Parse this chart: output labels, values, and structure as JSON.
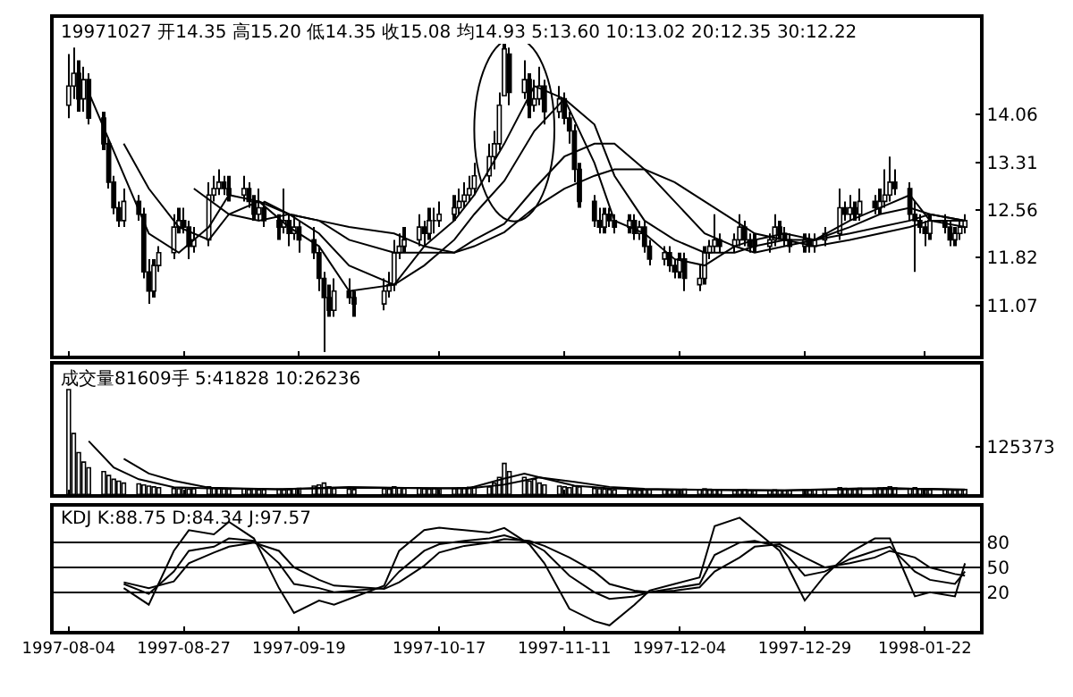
{
  "chart_data": [
    {
      "type": "candlestick",
      "title": "19971027 开14.35 高15.20 低14.35 收15.08 均14.93 5:13.60 10:13.02 20:12.35 30:12.22",
      "color": "#000000",
      "x": [
        "1997-08-04",
        "1997-08-05",
        "1997-08-06",
        "1997-08-07",
        "1997-08-08",
        "1997-08-11",
        "1997-08-12",
        "1997-08-13",
        "1997-08-14",
        "1997-08-15",
        "1997-08-18",
        "1997-08-19",
        "1997-08-20",
        "1997-08-21",
        "1997-08-22",
        "1997-08-25",
        "1997-08-26",
        "1997-08-27",
        "1997-08-28",
        "1997-08-29",
        "1997-09-01",
        "1997-09-02",
        "1997-09-03",
        "1997-09-04",
        "1997-09-05",
        "1997-09-08",
        "1997-09-09",
        "1997-09-10",
        "1997-09-11",
        "1997-09-12",
        "1997-09-15",
        "1997-09-16",
        "1997-09-17",
        "1997-09-18",
        "1997-09-19",
        "1997-09-22",
        "1997-09-23",
        "1997-09-24",
        "1997-09-25",
        "1997-09-26",
        "1997-09-29",
        "1997-09-30",
        "1997-10-06",
        "1997-10-07",
        "1997-10-08",
        "1997-10-09",
        "1997-10-10",
        "1997-10-13",
        "1997-10-14",
        "1997-10-15",
        "1997-10-16",
        "1997-10-17",
        "1997-10-20",
        "1997-10-21",
        "1997-10-22",
        "1997-10-23",
        "1997-10-24",
        "1997-10-27",
        "1997-10-28",
        "1997-10-29",
        "1997-10-30",
        "1997-10-31",
        "1997-11-03",
        "1997-11-04",
        "1997-11-05",
        "1997-11-06",
        "1997-11-07",
        "1997-11-10",
        "1997-11-11",
        "1997-11-12",
        "1997-11-13",
        "1997-11-14",
        "1997-11-17",
        "1997-11-18",
        "1997-11-19",
        "1997-11-20",
        "1997-11-21",
        "1997-11-24",
        "1997-11-25",
        "1997-11-26",
        "1997-11-27",
        "1997-11-28",
        "1997-12-01",
        "1997-12-02",
        "1997-12-03",
        "1997-12-04",
        "1997-12-05",
        "1997-12-08",
        "1997-12-09",
        "1997-12-10",
        "1997-12-11",
        "1997-12-12",
        "1997-12-15",
        "1997-12-16",
        "1997-12-17",
        "1997-12-18",
        "1997-12-19",
        "1997-12-22",
        "1997-12-23",
        "1997-12-24",
        "1997-12-25",
        "1997-12-26",
        "1997-12-29",
        "1997-12-30",
        "1997-12-31",
        "1998-01-02",
        "1998-01-05",
        "1998-01-06",
        "1998-01-07",
        "1998-01-08",
        "1998-01-09",
        "1998-01-12",
        "1998-01-13",
        "1998-01-14",
        "1998-01-15",
        "1998-01-16",
        "1998-01-19",
        "1998-01-20",
        "1998-01-21",
        "1998-01-22",
        "1998-01-23",
        "1998-01-26",
        "1998-01-27",
        "1998-01-28",
        "1998-01-29",
        "1998-01-30"
      ],
      "ohlc": [
        [
          14.2,
          15.0,
          14.0,
          14.5
        ],
        [
          14.5,
          15.1,
          14.3,
          14.7
        ],
        [
          14.7,
          14.9,
          14.1,
          14.3
        ],
        [
          14.3,
          14.8,
          14.1,
          14.6
        ],
        [
          14.6,
          14.7,
          13.9,
          14.0
        ],
        [
          14.0,
          14.1,
          13.5,
          13.6
        ],
        [
          13.6,
          13.7,
          12.9,
          13.0
        ],
        [
          13.0,
          13.1,
          12.5,
          12.6
        ],
        [
          12.6,
          12.7,
          12.3,
          12.4
        ],
        [
          12.4,
          12.9,
          12.3,
          12.7
        ],
        [
          12.7,
          12.8,
          12.4,
          12.5
        ],
        [
          12.5,
          12.6,
          11.5,
          11.6
        ],
        [
          11.6,
          11.8,
          11.1,
          11.3
        ],
        [
          11.3,
          11.8,
          11.2,
          11.7
        ],
        [
          11.7,
          12.0,
          11.6,
          11.9
        ],
        [
          11.9,
          12.5,
          11.8,
          12.3
        ],
        [
          12.3,
          12.6,
          12.2,
          12.4
        ],
        [
          12.4,
          12.6,
          12.2,
          12.3
        ],
        [
          12.3,
          12.4,
          11.8,
          12.0
        ],
        [
          12.0,
          12.3,
          11.9,
          12.1
        ],
        [
          12.1,
          13.0,
          12.0,
          12.8
        ],
        [
          12.8,
          13.1,
          12.7,
          12.9
        ],
        [
          12.9,
          13.2,
          12.8,
          13.0
        ],
        [
          13.0,
          13.1,
          12.8,
          12.9
        ],
        [
          12.9,
          13.1,
          12.7,
          12.8
        ],
        [
          12.8,
          13.1,
          12.7,
          12.9
        ],
        [
          12.9,
          13.0,
          12.6,
          12.7
        ],
        [
          12.7,
          12.8,
          12.4,
          12.5
        ],
        [
          12.5,
          12.9,
          12.4,
          12.6
        ],
        [
          12.6,
          12.7,
          12.3,
          12.4
        ],
        [
          12.4,
          12.5,
          12.1,
          12.3
        ],
        [
          12.3,
          12.9,
          12.2,
          12.4
        ],
        [
          12.4,
          12.5,
          12.0,
          12.2
        ],
        [
          12.2,
          12.5,
          12.1,
          12.3
        ],
        [
          12.3,
          12.4,
          11.9,
          12.1
        ],
        [
          12.1,
          12.3,
          11.8,
          11.9
        ],
        [
          11.9,
          12.0,
          11.3,
          11.5
        ],
        [
          11.5,
          11.6,
          10.35,
          11.2
        ],
        [
          11.2,
          11.4,
          10.9,
          11.0
        ],
        [
          11.0,
          11.5,
          10.9,
          11.3
        ],
        [
          11.3,
          11.5,
          11.1,
          11.2
        ],
        [
          11.2,
          11.3,
          10.9,
          11.1
        ],
        [
          11.1,
          11.5,
          11.0,
          11.3
        ],
        [
          11.3,
          11.6,
          11.2,
          11.4
        ],
        [
          11.4,
          12.1,
          11.3,
          11.9
        ],
        [
          11.9,
          12.2,
          11.8,
          12.0
        ],
        [
          12.0,
          12.3,
          11.9,
          12.1
        ],
        [
          12.1,
          12.5,
          12.0,
          12.3
        ],
        [
          12.3,
          12.4,
          12.0,
          12.2
        ],
        [
          12.2,
          12.6,
          12.1,
          12.4
        ],
        [
          12.4,
          12.6,
          12.2,
          12.4
        ],
        [
          12.4,
          12.7,
          12.3,
          12.5
        ],
        [
          12.5,
          12.8,
          12.4,
          12.6
        ],
        [
          12.6,
          12.9,
          12.5,
          12.7
        ],
        [
          12.7,
          13.0,
          12.6,
          12.8
        ],
        [
          12.8,
          13.1,
          12.7,
          12.9
        ],
        [
          12.9,
          13.3,
          12.8,
          13.1
        ],
        [
          13.1,
          13.6,
          13.0,
          13.4
        ],
        [
          13.4,
          13.8,
          13.2,
          13.6
        ],
        [
          13.6,
          14.4,
          13.5,
          14.2
        ],
        [
          14.35,
          15.2,
          14.35,
          15.08
        ],
        [
          15.0,
          15.1,
          14.2,
          14.4
        ],
        [
          14.4,
          14.9,
          14.3,
          14.6
        ],
        [
          14.6,
          14.7,
          14.0,
          14.2
        ],
        [
          14.2,
          14.6,
          14.1,
          14.3
        ],
        [
          14.3,
          14.8,
          14.2,
          14.5
        ],
        [
          14.5,
          14.6,
          13.9,
          14.1
        ],
        [
          14.1,
          14.5,
          14.0,
          14.3
        ],
        [
          14.3,
          14.4,
          13.9,
          14.0
        ],
        [
          14.0,
          14.1,
          13.6,
          13.8
        ],
        [
          13.8,
          13.9,
          13.0,
          13.2
        ],
        [
          13.2,
          13.3,
          12.6,
          12.7
        ],
        [
          12.7,
          12.8,
          12.3,
          12.4
        ],
        [
          12.4,
          12.6,
          12.2,
          12.3
        ],
        [
          12.3,
          12.6,
          12.2,
          12.5
        ],
        [
          12.5,
          12.6,
          12.3,
          12.4
        ],
        [
          12.4,
          12.5,
          12.2,
          12.3
        ],
        [
          12.3,
          12.5,
          12.2,
          12.4
        ],
        [
          12.4,
          12.5,
          12.1,
          12.2
        ],
        [
          12.2,
          12.4,
          12.1,
          12.3
        ],
        [
          12.3,
          12.4,
          11.9,
          12.0
        ],
        [
          12.0,
          12.1,
          11.7,
          11.8
        ],
        [
          11.8,
          12.0,
          11.7,
          11.9
        ],
        [
          11.9,
          12.0,
          11.6,
          11.7
        ],
        [
          11.7,
          11.8,
          11.5,
          11.6
        ],
        [
          11.6,
          11.9,
          11.5,
          11.8
        ],
        [
          11.8,
          11.9,
          11.3,
          11.5
        ],
        [
          11.4,
          11.7,
          11.3,
          11.5
        ],
        [
          11.5,
          12.0,
          11.4,
          11.9
        ],
        [
          11.9,
          12.1,
          11.8,
          12.0
        ],
        [
          12.0,
          12.5,
          11.9,
          12.1
        ],
        [
          12.1,
          12.2,
          11.9,
          12.0
        ],
        [
          12.0,
          12.2,
          11.9,
          12.1
        ],
        [
          12.1,
          12.5,
          12.0,
          12.3
        ],
        [
          12.3,
          12.4,
          12.0,
          12.1
        ],
        [
          12.1,
          12.2,
          11.9,
          12.0
        ],
        [
          12.1,
          12.2,
          11.9,
          12.0
        ],
        [
          12.0,
          12.2,
          11.9,
          12.1
        ],
        [
          12.1,
          12.5,
          12.0,
          12.3
        ],
        [
          12.3,
          12.4,
          12.1,
          12.2
        ],
        [
          12.2,
          12.3,
          12.0,
          12.1
        ],
        [
          12.1,
          12.2,
          11.9,
          12.0
        ],
        [
          12.0,
          12.2,
          11.9,
          12.1
        ],
        [
          12.1,
          12.2,
          11.9,
          12.0
        ],
        [
          12.0,
          12.2,
          11.9,
          12.1
        ],
        [
          12.1,
          12.3,
          12.0,
          12.2
        ],
        [
          12.2,
          12.9,
          12.1,
          12.6
        ],
        [
          12.6,
          12.7,
          12.4,
          12.5
        ],
        [
          12.5,
          12.8,
          12.4,
          12.6
        ],
        [
          12.6,
          12.7,
          12.4,
          12.5
        ],
        [
          12.5,
          12.9,
          12.4,
          12.7
        ],
        [
          12.7,
          12.8,
          12.5,
          12.6
        ],
        [
          12.6,
          12.9,
          12.5,
          12.7
        ],
        [
          12.7,
          13.2,
          12.6,
          12.8
        ],
        [
          12.8,
          13.4,
          12.7,
          13.0
        ],
        [
          13.0,
          13.2,
          12.8,
          12.9
        ],
        [
          12.9,
          13.0,
          12.4,
          12.5
        ],
        [
          12.5,
          12.7,
          11.6,
          12.4
        ],
        [
          12.4,
          12.5,
          12.2,
          12.3
        ],
        [
          12.3,
          12.4,
          12.0,
          12.2
        ],
        [
          12.2,
          12.5,
          12.1,
          12.4
        ],
        [
          12.4,
          12.5,
          12.2,
          12.3
        ],
        [
          12.3,
          12.4,
          12.0,
          12.1
        ],
        [
          12.1,
          12.3,
          12.0,
          12.2
        ],
        [
          12.2,
          12.4,
          12.1,
          12.3
        ],
        [
          12.3,
          12.5,
          12.2,
          12.4
        ]
      ],
      "series": [
        {
          "type": "line",
          "color": "#000000",
          "x": [
            "1997-08-08",
            "1997-08-14",
            "1997-08-20",
            "1997-08-26",
            "1997-09-01",
            "1997-09-05",
            "1997-09-11",
            "1997-09-17",
            "1997-09-23",
            "1997-09-29",
            "1997-10-08",
            "1997-10-14",
            "1997-10-20",
            "1997-10-24",
            "1997-10-30",
            "1997-11-05",
            "1997-11-11",
            "1997-11-17",
            "1997-11-21",
            "1997-11-27",
            "1997-12-03",
            "1997-12-09",
            "1997-12-15",
            "1997-12-19",
            "1997-12-25",
            "1997-12-31",
            "1998-01-07",
            "1998-01-13",
            "1998-01-19",
            "1998-01-23",
            "1998-01-30"
          ],
          "values": [
            14.4,
            13.3,
            12.2,
            11.9,
            12.3,
            12.8,
            12.7,
            12.3,
            12.0,
            11.3,
            11.4,
            12.0,
            12.4,
            12.8,
            13.6,
            14.5,
            14.3,
            13.3,
            12.4,
            12.2,
            11.8,
            11.7,
            12.0,
            12.1,
            12.2,
            12.1,
            12.4,
            12.6,
            12.8,
            12.4,
            12.3
          ]
        },
        {
          "type": "line",
          "color": "#000000",
          "x": [
            "1997-08-15",
            "1997-08-20",
            "1997-08-26",
            "1997-09-01",
            "1997-09-05",
            "1997-09-11",
            "1997-09-17",
            "1997-09-23",
            "1997-09-29",
            "1997-10-08",
            "1997-10-14",
            "1997-10-20",
            "1997-10-24",
            "1997-10-30",
            "1997-11-05",
            "1997-11-11",
            "1997-11-17",
            "1997-11-21",
            "1997-11-27",
            "1997-12-03",
            "1997-12-09",
            "1997-12-15",
            "1997-12-19",
            "1997-12-25",
            "1997-12-31",
            "1998-01-07",
            "1998-01-13",
            "1998-01-19",
            "1998-01-23",
            "1998-01-30"
          ],
          "values": [
            13.6,
            12.9,
            12.3,
            12.1,
            12.5,
            12.7,
            12.5,
            12.2,
            11.7,
            11.4,
            11.7,
            12.1,
            12.5,
            13.02,
            13.8,
            14.3,
            13.9,
            13.1,
            12.4,
            12.1,
            11.9,
            11.9,
            12.0,
            12.1,
            12.1,
            12.3,
            12.5,
            12.6,
            12.5,
            12.4
          ]
        },
        {
          "type": "line",
          "color": "#000000",
          "x": [
            "1997-08-29",
            "1997-09-05",
            "1997-09-11",
            "1997-09-17",
            "1997-09-23",
            "1997-09-29",
            "1997-10-08",
            "1997-10-14",
            "1997-10-20",
            "1997-10-24",
            "1997-10-30",
            "1997-11-05",
            "1997-11-11",
            "1997-11-17",
            "1997-11-21",
            "1997-11-27",
            "1997-12-03",
            "1997-12-09",
            "1997-12-15",
            "1997-12-19",
            "1997-12-25",
            "1997-12-31",
            "1998-01-07",
            "1998-01-13",
            "1998-01-19",
            "1998-01-23",
            "1998-01-30"
          ],
          "values": [
            12.9,
            12.5,
            12.4,
            12.5,
            12.4,
            12.1,
            11.9,
            11.9,
            11.9,
            12.1,
            12.35,
            12.9,
            13.4,
            13.6,
            13.6,
            13.2,
            12.7,
            12.2,
            12.0,
            11.9,
            12.0,
            12.1,
            12.2,
            12.3,
            12.4,
            12.5,
            12.4
          ]
        },
        {
          "type": "line",
          "color": "#000000",
          "x": [
            "1997-09-12",
            "1997-09-17",
            "1997-09-23",
            "1997-09-29",
            "1997-10-08",
            "1997-10-14",
            "1997-10-20",
            "1997-10-24",
            "1997-10-30",
            "1997-11-05",
            "1997-11-11",
            "1997-11-17",
            "1997-11-21",
            "1997-11-27",
            "1997-12-03",
            "1997-12-09",
            "1997-12-15",
            "1997-12-19",
            "1997-12-25",
            "1997-12-31",
            "1998-01-07",
            "1998-01-13",
            "1998-01-19",
            "1998-01-23",
            "1998-01-30"
          ],
          "values": [
            12.7,
            12.5,
            12.4,
            12.3,
            12.2,
            12.0,
            11.9,
            12.0,
            12.22,
            12.6,
            12.9,
            13.1,
            13.2,
            13.2,
            13.0,
            12.7,
            12.4,
            12.2,
            12.1,
            12.0,
            12.1,
            12.2,
            12.3,
            12.4,
            12.4
          ]
        }
      ],
      "xlim": [
        "1997-08-01",
        "1998-02-02"
      ],
      "xticks": [
        "1997-08-04",
        "1997-08-27",
        "1997-09-19",
        "1997-10-17",
        "1997-11-11",
        "1997-12-04",
        "1997-12-29",
        "1998-01-22"
      ],
      "ylim": [
        10.29,
        15.56
      ],
      "yticks": [
        14.06,
        13.31,
        12.56,
        11.82,
        11.07
      ],
      "tick_labels": "y"
    },
    {
      "type": "bar",
      "title": "成交量81609手 5:41828 10:26236",
      "color": "#000000",
      "x": [
        "1997-08-04",
        "1997-08-05",
        "1997-08-06",
        "1997-08-07",
        "1997-08-08",
        "1997-08-11",
        "1997-08-12",
        "1997-08-13",
        "1997-08-14",
        "1997-08-15",
        "1997-08-18",
        "1997-08-19",
        "1997-08-20",
        "1997-08-21",
        "1997-08-22",
        "1997-08-25",
        "1997-08-26",
        "1997-08-27",
        "1997-08-28",
        "1997-08-29",
        "1997-09-01",
        "1997-09-02",
        "1997-09-03",
        "1997-09-04",
        "1997-09-05",
        "1997-09-08",
        "1997-09-09",
        "1997-09-10",
        "1997-09-11",
        "1997-09-12",
        "1997-09-15",
        "1997-09-16",
        "1997-09-17",
        "1997-09-18",
        "1997-09-19",
        "1997-09-22",
        "1997-09-23",
        "1997-09-24",
        "1997-09-25",
        "1997-09-26",
        "1997-09-29",
        "1997-09-30",
        "1997-10-06",
        "1997-10-07",
        "1997-10-08",
        "1997-10-09",
        "1997-10-10",
        "1997-10-13",
        "1997-10-14",
        "1997-10-15",
        "1997-10-16",
        "1997-10-17",
        "1997-10-20",
        "1997-10-21",
        "1997-10-22",
        "1997-10-23",
        "1997-10-24",
        "1997-10-27",
        "1997-10-28",
        "1997-10-29",
        "1997-10-30",
        "1997-10-31",
        "1997-11-03",
        "1997-11-04",
        "1997-11-05",
        "1997-11-06",
        "1997-11-07",
        "1997-11-10",
        "1997-11-11",
        "1997-11-12",
        "1997-11-13",
        "1997-11-14",
        "1997-11-17",
        "1997-11-18",
        "1997-11-19",
        "1997-11-20",
        "1997-11-21",
        "1997-11-24",
        "1997-11-25",
        "1997-11-26",
        "1997-11-27",
        "1997-11-28",
        "1997-12-01",
        "1997-12-02",
        "1997-12-03",
        "1997-12-04",
        "1997-12-05",
        "1997-12-08",
        "1997-12-09",
        "1997-12-10",
        "1997-12-11",
        "1997-12-12",
        "1997-12-15",
        "1997-12-16",
        "1997-12-17",
        "1997-12-18",
        "1997-12-19",
        "1997-12-22",
        "1997-12-23",
        "1997-12-24",
        "1997-12-25",
        "1997-12-26",
        "1997-12-29",
        "1997-12-30",
        "1997-12-31",
        "1998-01-02",
        "1998-01-05",
        "1998-01-06",
        "1998-01-07",
        "1998-01-08",
        "1998-01-09",
        "1998-01-12",
        "1998-01-13",
        "1998-01-14",
        "1998-01-15",
        "1998-01-16",
        "1998-01-19",
        "1998-01-20",
        "1998-01-21",
        "1998-01-22",
        "1998-01-23",
        "1998-01-26",
        "1998-01-27",
        "1998-01-28",
        "1998-01-29",
        "1998-01-30"
      ],
      "values": [
        275000,
        160000,
        110000,
        85000,
        70000,
        60000,
        50000,
        40000,
        35000,
        30000,
        28000,
        25000,
        22000,
        20000,
        18000,
        16000,
        15000,
        17000,
        14000,
        15000,
        20000,
        18000,
        16000,
        15000,
        14000,
        15000,
        13000,
        14000,
        12000,
        13000,
        14000,
        12000,
        13000,
        15000,
        16000,
        22000,
        25000,
        30000,
        20000,
        16000,
        14000,
        13000,
        15000,
        14000,
        20000,
        18000,
        16000,
        17000,
        15000,
        14000,
        16000,
        15000,
        16000,
        17000,
        18000,
        19000,
        20000,
        20000,
        30000,
        45000,
        81609,
        60000,
        45000,
        35000,
        40000,
        30000,
        25000,
        22000,
        20000,
        18000,
        22000,
        20000,
        16000,
        15000,
        14000,
        13000,
        12000,
        13000,
        12000,
        11000,
        12000,
        13000,
        12000,
        11000,
        12000,
        13000,
        14000,
        12000,
        15000,
        14000,
        13000,
        12000,
        11000,
        12000,
        13000,
        11000,
        10000,
        11000,
        12000,
        11000,
        10000,
        11000,
        12000,
        11000,
        12000,
        13000,
        18000,
        16000,
        15000,
        14000,
        16000,
        15000,
        17000,
        18000,
        20000,
        17000,
        15000,
        18000,
        14000,
        13000,
        12000,
        13000,
        12000,
        11000,
        12000,
        13000
      ],
      "series": [
        {
          "type": "line",
          "color": "#000000",
          "x": [
            "1997-08-08",
            "1997-08-13",
            "1997-08-18",
            "1997-08-25",
            "1997-09-01",
            "1997-09-15",
            "1997-09-29",
            "1997-10-16",
            "1997-10-23",
            "1997-10-30",
            "1997-11-03",
            "1997-11-07",
            "1997-11-13",
            "1997-11-20",
            "1997-11-27",
            "1997-12-11",
            "1997-12-25",
            "1998-01-09",
            "1998-01-16",
            "1998-01-23",
            "1998-01-30"
          ],
          "values": [
            140000,
            71000,
            40000,
            19000,
            16000,
            14000,
            20000,
            16000,
            17000,
            41828,
            55000,
            42000,
            23000,
            16000,
            13000,
            12000,
            11000,
            16000,
            17000,
            14000,
            12000
          ]
        },
        {
          "type": "line",
          "color": "#000000",
          "x": [
            "1997-08-15",
            "1997-08-20",
            "1997-08-25",
            "1997-09-01",
            "1997-09-15",
            "1997-09-29",
            "1997-10-16",
            "1997-10-23",
            "1997-10-30",
            "1997-11-06",
            "1997-11-13",
            "1997-11-20",
            "1997-11-27",
            "1997-12-11",
            "1997-12-25",
            "1998-01-09",
            "1998-01-23",
            "1998-01-30"
          ],
          "values": [
            94000,
            55000,
            36000,
            18000,
            14000,
            18000,
            17000,
            16000,
            26236,
            45000,
            33000,
            20000,
            15000,
            12000,
            11000,
            14000,
            15000,
            13000
          ]
        }
      ],
      "xlim": [
        "1997-08-01",
        "1998-02-02"
      ],
      "xticks": [
        "1997-08-04",
        "1997-08-27",
        "1997-09-19",
        "1997-10-17",
        "1997-11-11",
        "1997-12-04",
        "1997-12-29",
        "1998-01-22"
      ],
      "ylim": [
        0,
        340000
      ],
      "yticks": [
        {
          "value": 0,
          "label": null
        },
        125373
      ],
      "tick_labels": "y"
    },
    {
      "type": "line",
      "title": "KDJ K:88.75 D:84.34 J:97.57",
      "grid": "y",
      "x": [
        "1997-08-15",
        "1997-08-20",
        "1997-08-25",
        "1997-08-28",
        "1997-09-02",
        "1997-09-05",
        "1997-09-10",
        "1997-09-15",
        "1997-09-18",
        "1997-09-23",
        "1997-09-26",
        "1997-10-06",
        "1997-10-09",
        "1997-10-14",
        "1997-10-17",
        "1997-10-22",
        "1997-10-27",
        "1997-10-30",
        "1997-11-04",
        "1997-11-07",
        "1997-11-12",
        "1997-11-17",
        "1997-11-20",
        "1997-11-25",
        "1997-11-28",
        "1997-12-03",
        "1997-12-08",
        "1997-12-11",
        "1997-12-16",
        "1997-12-19",
        "1997-12-24",
        "1997-12-29",
        "1998-01-02",
        "1998-01-07",
        "1998-01-12",
        "1998-01-15",
        "1998-01-20",
        "1998-01-23",
        "1998-01-28",
        "1998-01-30"
      ],
      "series": [
        {
          "color": "#000000",
          "values": [
            30,
            18,
            45,
            70,
            75,
            85,
            82,
            55,
            30,
            25,
            20,
            25,
            45,
            70,
            78,
            82,
            85,
            88.75,
            80,
            70,
            40,
            20,
            12,
            15,
            20,
            25,
            30,
            65,
            80,
            82,
            75,
            40,
            45,
            60,
            70,
            75,
            45,
            35,
            30,
            45
          ]
        },
        {
          "color": "#000000",
          "values": [
            32,
            25,
            33,
            55,
            68,
            75,
            80,
            70,
            50,
            35,
            28,
            24,
            32,
            52,
            68,
            76,
            80,
            84.34,
            82,
            76,
            62,
            45,
            30,
            22,
            20,
            22,
            26,
            45,
            62,
            75,
            78,
            62,
            50,
            55,
            62,
            70,
            62,
            50,
            42,
            40
          ]
        },
        {
          "color": "#000000",
          "values": [
            25,
            5,
            70,
            95,
            90,
            105,
            85,
            25,
            -5,
            10,
            5,
            28,
            70,
            95,
            98,
            95,
            92,
            97.57,
            78,
            55,
            0,
            -15,
            -20,
            5,
            22,
            30,
            38,
            100,
            110,
            95,
            70,
            10,
            40,
            68,
            85,
            85,
            15,
            20,
            15,
            55
          ]
        }
      ],
      "xlim": [
        "1997-08-01",
        "1998-02-02"
      ],
      "xticks": [
        "1997-08-04",
        "1997-08-27",
        "1997-09-19",
        "1997-10-17",
        "1997-11-11",
        "1997-12-04",
        "1997-12-29",
        "1998-01-22"
      ],
      "ylim": [
        -27,
        123
      ],
      "yticks": [
        80,
        50,
        20
      ]
    }
  ]
}
